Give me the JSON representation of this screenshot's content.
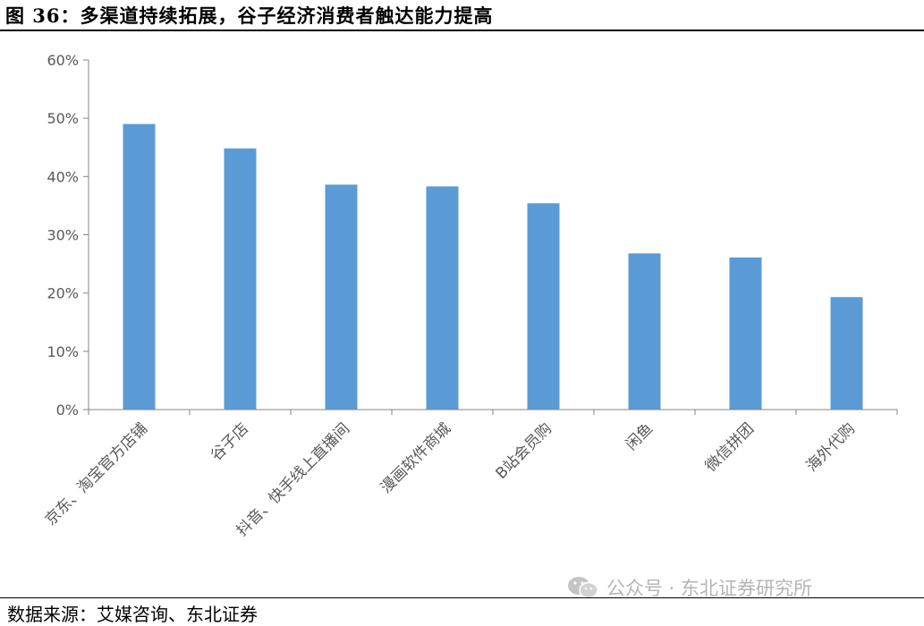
{
  "figure_title": "图 36：多渠道持续拓展，谷子经济消费者触达能力提高",
  "source_note": "数据来源：艾媒咨询、东北证券",
  "watermark": {
    "text": "公众号 · 东北证券研究所",
    "icon": "wechat-icon"
  },
  "chart_data": {
    "type": "bar",
    "title": "",
    "xlabel": "",
    "ylabel": "",
    "categories": [
      "京东、淘宝官方店铺",
      "谷子店",
      "抖音、快手线上直播间",
      "漫画软件商城",
      "B站会员购",
      "闲鱼",
      "微信拼团",
      "海外代购"
    ],
    "values": [
      49.0,
      44.8,
      38.6,
      38.3,
      35.4,
      26.8,
      26.1,
      19.3
    ],
    "ylim": [
      0,
      60
    ],
    "yticks": [
      "0%",
      "10%",
      "20%",
      "30%",
      "40%",
      "50%",
      "60%"
    ],
    "grid": false,
    "legend": "none",
    "bar_color": "#5B9BD5"
  }
}
